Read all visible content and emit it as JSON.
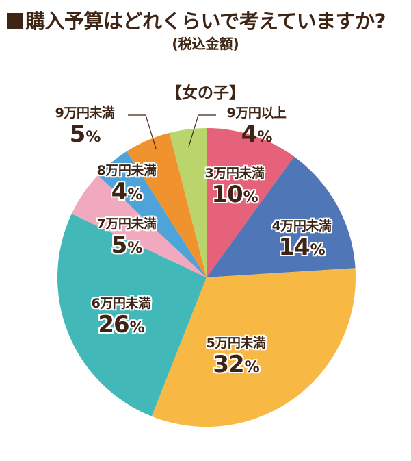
{
  "header": {
    "title": "購入予算はどれくらいで考えていますか?",
    "subtitle": "(税込金額)",
    "group_label": "【女の子】"
  },
  "colors": {
    "text": "#3d2414",
    "slice_3man": "#e5627a",
    "slice_4man": "#4f77b8",
    "slice_5man": "#f8b944",
    "slice_6man": "#42b8b8",
    "slice_7man": "#f1a9c0",
    "slice_8man": "#4ea3d9",
    "slice_9man_under": "#f0922e",
    "slice_9man_over": "#b9d56c"
  },
  "chart_data": {
    "type": "pie",
    "title": "購入予算はどれくらいで考えていますか?",
    "subtitle": "(税込金額)",
    "group": "【女の子】",
    "start_angle": "12 o'clock, clockwise",
    "categories": [
      "3万円未満",
      "4万円未満",
      "5万円未満",
      "6万円未満",
      "7万円未満",
      "8万円未満",
      "9万円未満",
      "9万円以上"
    ],
    "values": [
      10,
      14,
      32,
      26,
      5,
      4,
      5,
      4
    ],
    "unit": "%",
    "slices": [
      {
        "label": "3万円未満",
        "value": 10,
        "value_text": "10",
        "color": "#e5627a"
      },
      {
        "label": "4万円未満",
        "value": 14,
        "value_text": "14",
        "color": "#4f77b8"
      },
      {
        "label": "5万円未満",
        "value": 32,
        "value_text": "32",
        "color": "#f8b944"
      },
      {
        "label": "6万円未満",
        "value": 26,
        "value_text": "26",
        "color": "#42b8b8"
      },
      {
        "label": "7万円未満",
        "value": 5,
        "value_text": "5",
        "color": "#f1a9c0"
      },
      {
        "label": "8万円未満",
        "value": 4,
        "value_text": "4",
        "color": "#4ea3d9"
      },
      {
        "label": "9万円未満",
        "value": 5,
        "value_text": "5",
        "color": "#f0922e"
      },
      {
        "label": "9万円以上",
        "value": 4,
        "value_text": "4",
        "color": "#b9d56c"
      }
    ],
    "percent_sign": "%"
  }
}
